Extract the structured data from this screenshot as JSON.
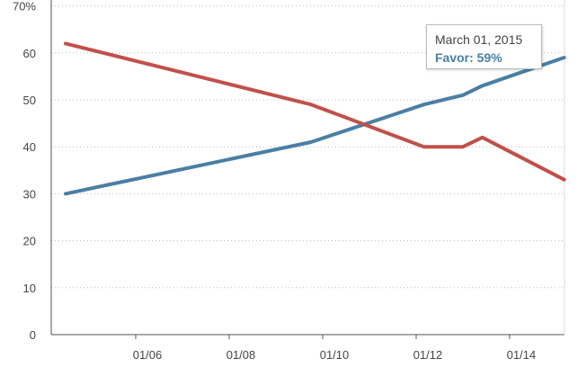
{
  "chart_data": {
    "type": "line",
    "x_ticks": [
      "01/06",
      "01/08",
      "01/10",
      "01/12",
      "01/14"
    ],
    "y_ticks": [
      "0",
      "10",
      "20",
      "30",
      "40",
      "50",
      "60",
      "70%"
    ],
    "ylim": [
      0,
      70
    ],
    "grid": "horizontal dotted",
    "series": [
      {
        "name": "Favor",
        "color": "#4a7fa3",
        "points": [
          {
            "x": "2004-07",
            "y": 30
          },
          {
            "x": "2009-10",
            "y": 41
          },
          {
            "x": "2012-03",
            "y": 49
          },
          {
            "x": "2013-01",
            "y": 51
          },
          {
            "x": "2013-06",
            "y": 53
          },
          {
            "x": "2015-03",
            "y": 59
          }
        ]
      },
      {
        "color": "#c1504a",
        "points": [
          {
            "x": "2004-07",
            "y": 62
          },
          {
            "x": "2009-10",
            "y": 49
          },
          {
            "x": "2012-03",
            "y": 40
          },
          {
            "x": "2013-01",
            "y": 40
          },
          {
            "x": "2013-06",
            "y": 42
          },
          {
            "x": "2015-03",
            "y": 33
          }
        ]
      }
    ],
    "tooltip": {
      "date": "March 01, 2015",
      "label": "Favor: 59%"
    }
  }
}
